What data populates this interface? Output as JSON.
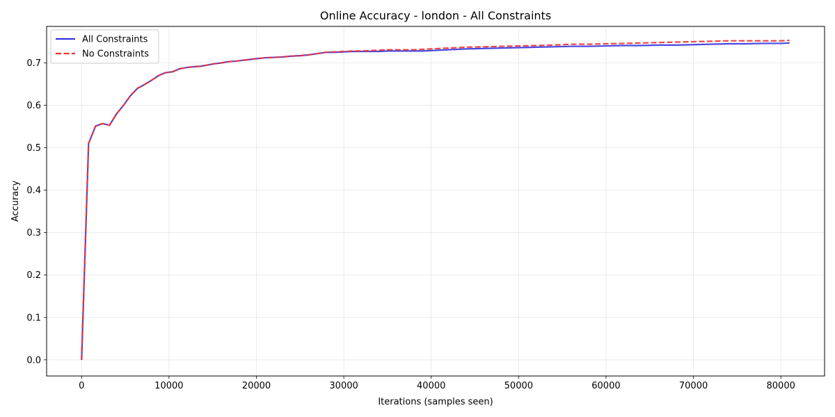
{
  "chart_data": {
    "type": "line",
    "title": "Online Accuracy - london - All Constraints",
    "xlabel": "Iterations (samples seen)",
    "ylabel": "Accuracy",
    "xlim": [
      -4000,
      85000
    ],
    "ylim": [
      -0.038,
      0.786
    ],
    "xticks": [
      0,
      10000,
      20000,
      30000,
      40000,
      50000,
      60000,
      70000,
      80000
    ],
    "yticks": [
      0.0,
      0.1,
      0.2,
      0.3,
      0.4,
      0.5,
      0.6,
      0.7
    ],
    "ytick_labels": [
      "0.0",
      "0.1",
      "0.2",
      "0.3",
      "0.4",
      "0.5",
      "0.6",
      "0.7"
    ],
    "grid": true,
    "legend_position": "top-left",
    "series": [
      {
        "name": "All Constraints",
        "color": "#3333dd",
        "style": "solid",
        "x": [
          0,
          800,
          1600,
          2400,
          3200,
          4000,
          4800,
          5600,
          6400,
          7200,
          8000,
          8800,
          9600,
          10400,
          11200,
          12000,
          12800,
          13600,
          14400,
          15200,
          16000,
          16800,
          17600,
          18400,
          19200,
          20000,
          21000,
          22000,
          23000,
          24000,
          25000,
          26000,
          27000,
          28000,
          29000,
          30000,
          31000,
          32000,
          33000,
          34000,
          35000,
          36000,
          37000,
          38000,
          39000,
          40000,
          42000,
          44000,
          46000,
          48000,
          50000,
          52000,
          54000,
          56000,
          58000,
          60000,
          62000,
          64000,
          66000,
          68000,
          70000,
          72000,
          74000,
          76000,
          78000,
          80000,
          81000
        ],
        "y": [
          0.0,
          0.51,
          0.551,
          0.557,
          0.553,
          0.58,
          0.6,
          0.623,
          0.64,
          0.649,
          0.659,
          0.67,
          0.677,
          0.679,
          0.686,
          0.689,
          0.691,
          0.692,
          0.695,
          0.698,
          0.7,
          0.703,
          0.704,
          0.706,
          0.708,
          0.71,
          0.712,
          0.713,
          0.714,
          0.716,
          0.717,
          0.719,
          0.722,
          0.725,
          0.725,
          0.726,
          0.727,
          0.727,
          0.727,
          0.727,
          0.728,
          0.728,
          0.728,
          0.728,
          0.728,
          0.729,
          0.731,
          0.733,
          0.734,
          0.735,
          0.736,
          0.737,
          0.738,
          0.739,
          0.739,
          0.74,
          0.741,
          0.741,
          0.742,
          0.742,
          0.743,
          0.744,
          0.745,
          0.745,
          0.746,
          0.746,
          0.747
        ]
      },
      {
        "name": "No Constraints",
        "color": "#ee3333",
        "style": "dashed",
        "x": [
          0,
          800,
          1600,
          2400,
          3200,
          4000,
          4800,
          5600,
          6400,
          7200,
          8000,
          8800,
          9600,
          10400,
          11200,
          12000,
          12800,
          13600,
          14400,
          15200,
          16000,
          16800,
          17600,
          18400,
          19200,
          20000,
          21000,
          22000,
          23000,
          24000,
          25000,
          26000,
          27000,
          28000,
          29000,
          30000,
          31000,
          32000,
          33000,
          34000,
          35000,
          36000,
          37000,
          38000,
          39000,
          40000,
          42000,
          44000,
          46000,
          48000,
          50000,
          52000,
          54000,
          56000,
          58000,
          60000,
          62000,
          64000,
          66000,
          68000,
          70000,
          72000,
          74000,
          76000,
          78000,
          80000,
          81000
        ],
        "y": [
          0.0,
          0.51,
          0.551,
          0.557,
          0.553,
          0.58,
          0.6,
          0.623,
          0.64,
          0.649,
          0.659,
          0.67,
          0.677,
          0.679,
          0.686,
          0.689,
          0.691,
          0.692,
          0.695,
          0.698,
          0.7,
          0.703,
          0.704,
          0.706,
          0.708,
          0.71,
          0.712,
          0.713,
          0.714,
          0.716,
          0.717,
          0.719,
          0.722,
          0.725,
          0.726,
          0.727,
          0.728,
          0.728,
          0.729,
          0.73,
          0.731,
          0.731,
          0.731,
          0.731,
          0.732,
          0.733,
          0.735,
          0.737,
          0.738,
          0.739,
          0.74,
          0.741,
          0.742,
          0.744,
          0.744,
          0.745,
          0.746,
          0.747,
          0.748,
          0.749,
          0.75,
          0.751,
          0.752,
          0.752,
          0.752,
          0.752,
          0.753
        ]
      }
    ]
  }
}
